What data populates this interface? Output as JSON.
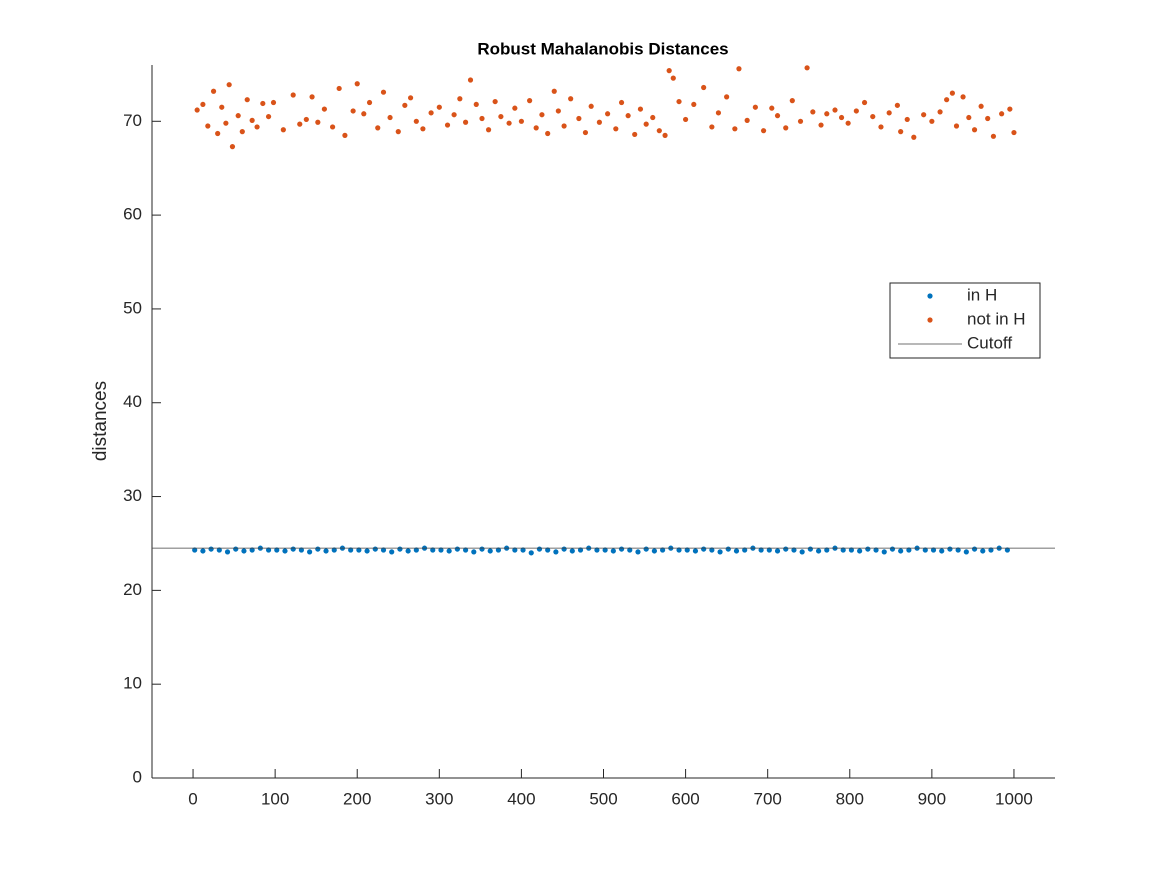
{
  "chart_data": {
    "type": "scatter",
    "title": "Robust Mahalanobis Distances",
    "y_label": "distances",
    "xlim": [
      -50,
      1050
    ],
    "ylim": [
      0,
      76
    ],
    "xticks": [
      0,
      100,
      200,
      300,
      400,
      500,
      600,
      700,
      800,
      900,
      1000
    ],
    "yticks": [
      0,
      10,
      20,
      30,
      40,
      50,
      60,
      70
    ],
    "legend_position": "right",
    "series": [
      {
        "name": "in H",
        "color": "#0072BD",
        "x": [
          2,
          12,
          22,
          32,
          42,
          52,
          62,
          72,
          82,
          92,
          102,
          112,
          122,
          132,
          142,
          152,
          162,
          172,
          182,
          192,
          202,
          212,
          222,
          232,
          242,
          252,
          262,
          272,
          282,
          292,
          302,
          312,
          322,
          332,
          342,
          352,
          362,
          372,
          382,
          392,
          402,
          412,
          422,
          432,
          442,
          452,
          462,
          472,
          482,
          492,
          502,
          512,
          522,
          532,
          542,
          552,
          562,
          572,
          582,
          592,
          602,
          612,
          622,
          632,
          642,
          652,
          662,
          672,
          682,
          692,
          702,
          712,
          722,
          732,
          742,
          752,
          762,
          772,
          782,
          792,
          802,
          812,
          822,
          832,
          842,
          852,
          862,
          872,
          882,
          892,
          902,
          912,
          922,
          932,
          942,
          952,
          962,
          972,
          982,
          992
        ],
        "values": [
          24.3,
          24.2,
          24.4,
          24.3,
          24.1,
          24.4,
          24.2,
          24.3,
          24.5,
          24.3,
          24.3,
          24.2,
          24.4,
          24.3,
          24.1,
          24.4,
          24.2,
          24.3,
          24.5,
          24.3,
          24.3,
          24.2,
          24.4,
          24.3,
          24.1,
          24.4,
          24.2,
          24.3,
          24.5,
          24.3,
          24.3,
          24.2,
          24.4,
          24.3,
          24.1,
          24.4,
          24.2,
          24.3,
          24.5,
          24.3,
          24.3,
          24.0,
          24.4,
          24.3,
          24.1,
          24.4,
          24.2,
          24.3,
          24.5,
          24.3,
          24.3,
          24.2,
          24.4,
          24.3,
          24.1,
          24.4,
          24.2,
          24.3,
          24.5,
          24.3,
          24.3,
          24.2,
          24.4,
          24.3,
          24.1,
          24.4,
          24.2,
          24.3,
          24.5,
          24.3,
          24.3,
          24.2,
          24.4,
          24.3,
          24.1,
          24.4,
          24.2,
          24.3,
          24.5,
          24.3,
          24.3,
          24.2,
          24.4,
          24.3,
          24.1,
          24.4,
          24.2,
          24.3,
          24.5,
          24.3,
          24.3,
          24.2,
          24.4,
          24.3,
          24.1,
          24.4,
          24.2,
          24.3,
          24.5,
          24.3
        ]
      },
      {
        "name": "not in H",
        "color": "#D95319",
        "x": [
          5,
          12,
          18,
          25,
          30,
          35,
          40,
          44,
          48,
          55,
          60,
          66,
          72,
          78,
          85,
          92,
          98,
          110,
          122,
          130,
          138,
          145,
          152,
          160,
          170,
          178,
          185,
          195,
          200,
          208,
          215,
          225,
          232,
          240,
          250,
          258,
          265,
          272,
          280,
          290,
          300,
          310,
          318,
          325,
          332,
          338,
          345,
          352,
          360,
          368,
          375,
          385,
          392,
          400,
          410,
          418,
          425,
          432,
          440,
          445,
          452,
          460,
          470,
          478,
          485,
          495,
          505,
          515,
          522,
          530,
          538,
          545,
          552,
          560,
          568,
          575,
          580,
          585,
          592,
          600,
          610,
          622,
          632,
          640,
          650,
          660,
          665,
          675,
          685,
          695,
          705,
          712,
          722,
          730,
          740,
          748,
          755,
          765,
          772,
          782,
          790,
          798,
          808,
          818,
          828,
          838,
          848,
          858,
          862,
          870,
          878,
          890,
          900,
          910,
          918,
          925,
          930,
          938,
          945,
          952,
          960,
          968,
          975,
          985,
          995,
          1000
        ],
        "values": [
          71.2,
          71.8,
          69.5,
          73.2,
          68.7,
          71.5,
          69.8,
          73.9,
          67.3,
          70.6,
          68.9,
          72.3,
          70.1,
          69.4,
          71.9,
          70.5,
          72.0,
          69.1,
          72.8,
          69.7,
          70.2,
          72.6,
          69.9,
          71.3,
          69.4,
          73.5,
          68.5,
          71.1,
          74.0,
          70.8,
          72.0,
          69.3,
          73.1,
          70.4,
          68.9,
          71.7,
          72.5,
          70.0,
          69.2,
          70.9,
          71.5,
          69.6,
          70.7,
          72.4,
          69.9,
          74.4,
          71.8,
          70.3,
          69.1,
          72.1,
          70.5,
          69.8,
          71.4,
          70.0,
          72.2,
          69.3,
          70.7,
          68.7,
          73.2,
          71.1,
          69.5,
          72.4,
          70.3,
          68.8,
          71.6,
          69.9,
          70.8,
          69.2,
          72.0,
          70.6,
          68.6,
          71.3,
          69.7,
          70.4,
          69.0,
          68.5,
          75.4,
          74.6,
          72.1,
          70.2,
          71.8,
          73.6,
          69.4,
          70.9,
          72.6,
          69.2,
          75.6,
          70.1,
          71.5,
          69.0,
          71.4,
          70.6,
          69.3,
          72.2,
          70.0,
          75.7,
          71.0,
          69.6,
          70.8,
          71.2,
          70.4,
          69.8,
          71.1,
          72.0,
          70.5,
          69.4,
          70.9,
          71.7,
          68.9,
          70.2,
          68.3,
          70.7,
          70.0,
          71.0,
          72.3,
          73.0,
          69.5,
          72.6,
          70.4,
          69.1,
          71.6,
          70.3,
          68.4,
          70.8,
          71.3,
          68.8
        ]
      }
    ],
    "cutoff": {
      "name": "Cutoff",
      "value": 24.5,
      "color": "#404040"
    }
  }
}
